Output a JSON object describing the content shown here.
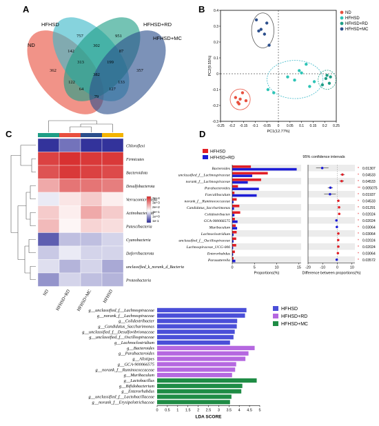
{
  "panels": {
    "A": {
      "letter": "A",
      "venn": {
        "set_labels": [
          "ND",
          "HFHSD",
          "HFHSD+RD",
          "HFHSD+MC"
        ],
        "colors": [
          "#e8503f",
          "#3cb8c8",
          "#1f9e86",
          "#2c4f8c"
        ],
        "region_counts": [
          "757",
          "951",
          "142",
          "302",
          "87",
          "362",
          "313",
          "199",
          "357",
          "122",
          "382",
          "133",
          "64",
          "127",
          "79"
        ]
      }
    },
    "B": {
      "letter": "B",
      "chart_data": {
        "type": "scatter",
        "xlabel": "PC1(12.77%)",
        "ylabel": "PC2(9.55%)",
        "xlim": [
          -0.25,
          0.25
        ],
        "ylim": [
          -0.3,
          0.4
        ],
        "xticks": [
          "-0.25",
          "-0.2",
          "-0.15",
          "-0.1",
          "-0.05",
          "0",
          "0.05",
          "0.1",
          "0.15",
          "0.2",
          "0.25"
        ],
        "yticks": [
          "-0.3",
          "-0.2",
          "-0.1",
          "0",
          "0.1",
          "0.2",
          "0.3",
          "0.4"
        ],
        "legend_position": "top-right",
        "series": [
          {
            "name": "ND",
            "color": "#e8503f",
            "x": [
              -0.185,
              -0.175,
              -0.165,
              -0.17,
              -0.155,
              -0.14
            ],
            "y": [
              -0.15,
              -0.18,
              -0.16,
              -0.19,
              -0.12,
              -0.17
            ]
          },
          {
            "name": "HFHSD",
            "color": "#2ec4b6",
            "x": [
              -0.045,
              -0.02,
              0.04,
              0.07,
              0.09,
              0.12,
              0.135,
              0.155,
              0.1
            ],
            "y": [
              -0.1,
              -0.12,
              -0.02,
              -0.04,
              0.02,
              0.06,
              -0.08,
              -0.05,
              0.005
            ]
          },
          {
            "name": "HFHSD+RD",
            "color": "#1f9e86",
            "x": [
              0.19,
              0.205,
              0.21,
              0.22,
              0.225
            ],
            "y": [
              -0.07,
              -0.03,
              -0.01,
              -0.06,
              -0.02
            ]
          },
          {
            "name": "HFHSD+MC",
            "color": "#2c4f8c",
            "x": [
              -0.095,
              -0.085,
              -0.075,
              -0.06,
              -0.05,
              -0.04
            ],
            "y": [
              0.34,
              0.27,
              0.28,
              0.25,
              0.32,
              0.18
            ]
          }
        ]
      }
    },
    "C": {
      "letter": "C",
      "chart_data": {
        "type": "heatmap",
        "columns": [
          "ND",
          "HFHSD+RD",
          "HFHSD+MC",
          "HFHSD"
        ],
        "column_colors": [
          "#1f9e86",
          "#e8503f",
          "#2c4f8c",
          "#f4b400"
        ],
        "rows": [
          "Chloroflexi",
          "Firmicutes",
          "Bacteroidota",
          "Desulfobacterota",
          "Verrucomicrobiota",
          "Actinobacteriota",
          "Patescibacteria",
          "Cyanobacteria",
          "Deferribacterota",
          "unclassified_k_norank_d_Bacteria",
          "Proteobacteria"
        ],
        "values_log10": [
          [
            -0.9,
            -0.3,
            -0.9,
            -0.9
          ],
          [
            3.2,
            3.4,
            3.3,
            3.3
          ],
          [
            3.0,
            3.3,
            3.2,
            3.1
          ],
          [
            2.0,
            2.6,
            2.6,
            2.5
          ],
          [
            0.8,
            1.3,
            1.6,
            1.2
          ],
          [
            1.6,
            1.2,
            2.0,
            1.6
          ],
          [
            1.8,
            1.1,
            1.5,
            1.4
          ],
          [
            -0.5,
            0.4,
            0.4,
            0.6
          ],
          [
            0.5,
            0.8,
            0.6,
            0.6
          ],
          [
            0.7,
            0.3,
            0.6,
            0.2
          ],
          [
            0.0,
            0.6,
            0.4,
            0.3
          ]
        ],
        "legend_labels": [
          "3e+4",
          "3e+3",
          "2e+2",
          "3e+1",
          "1e+0",
          "1e-1"
        ]
      }
    },
    "D": {
      "letter": "D",
      "legend": [
        "HFHSD",
        "HFHSD+RD"
      ],
      "colors": [
        "#e21f26",
        "#1c1cd6"
      ],
      "ci_title": "95% confidence intervals",
      "chart_data": {
        "type": "bar",
        "categories": [
          "Bacteroides",
          "unclassified_f__Lachnospiraceae",
          "norank_f__Lachnospiraceae",
          "Parabacteroides",
          "Faecalibaculum",
          "norank_f__Ruminococcaceae",
          "Candidatus_Saccharimonas",
          "Colidextribacter",
          "GCA-900066575",
          "Muribaculum",
          "Lachnoclostridium",
          "unclassified_f__Oscillospiraceae",
          "Lachnospiraceae_UCG-006",
          "Enterorhabdus",
          "Parasutterella"
        ],
        "series": [
          {
            "name": "HFHSD",
            "values": [
              4.2,
              8.0,
              6.5,
              1.3,
              0.5,
              1.0,
              1.6,
              1.8,
              0.6,
              0.8,
              1.0,
              0.9,
              0.9,
              0.6,
              0.3
            ]
          },
          {
            "name": "HFHSD+RD",
            "values": [
              14.5,
              4.5,
              3.5,
              6.0,
              5.5,
              0.3,
              0.4,
              0.5,
              1.2,
              1.1,
              0.3,
              0.3,
              0.2,
              0.2,
              0.7
            ]
          }
        ],
        "xlabel": "Proportions(%)",
        "xticks": [
          "0",
          "5",
          "10",
          "15"
        ],
        "diff": [
          -10.3,
          3.5,
          3.0,
          -4.7,
          -5.0,
          0.7,
          1.2,
          1.3,
          -0.6,
          -0.3,
          0.7,
          0.6,
          0.7,
          0.4,
          -0.4
        ],
        "diff_lo": [
          -14.5,
          2.0,
          1.5,
          -6.5,
          -9.0,
          0.3,
          0.5,
          0.7,
          -1.0,
          -0.6,
          0.4,
          0.3,
          0.4,
          0.2,
          -0.7
        ],
        "diff_hi": [
          -6.0,
          5.0,
          4.5,
          -3.0,
          -1.0,
          1.1,
          1.9,
          1.9,
          -0.2,
          0.0,
          1.0,
          0.9,
          1.0,
          0.6,
          -0.1
        ],
        "diff_xlabel": "Difference between proportions(%)",
        "diff_xticks": [
          "-20",
          "-10",
          "0",
          "10"
        ],
        "pvalues": [
          "0.01307",
          "0.04533",
          "0.04533",
          "0.005075",
          "0.01937",
          "0.04533",
          "0.01291",
          "0.02024",
          "0.02024",
          "0.03064",
          "0.03064",
          "0.02024",
          "0.02024",
          "0.03064",
          "0.03572"
        ],
        "stars": [
          "*",
          "*",
          "*",
          "**",
          "*",
          "*",
          "*",
          "*",
          "*",
          "*",
          "*",
          "*",
          "*",
          "*",
          "*"
        ]
      }
    },
    "E": {
      "letter": "E",
      "legend": [
        "HFHSD",
        "HFHSD+RD",
        "HFHSD+MC"
      ],
      "colors": [
        "#4b4fd8",
        "#b568e0",
        "#1f8c45"
      ],
      "chart_data": {
        "type": "bar",
        "categories": [
          "g__unclassified_f__Lachnospiraceae",
          "g__norank_f__Lachnospiraceae",
          "g__Colidextribacter",
          "g__Candidatus_Saccharimonas",
          "g__unclassified_f__Desulfovibrionaceae",
          "g__unclassified_f__Oscillospiraceae",
          "g__Lachnoclostridium",
          "g__Bacteroides",
          "g__Parabacteroides",
          "g__Alistipes",
          "g__GCA-900066575",
          "g__norank_f__Ruminococcaceae",
          "g__Muribaculum",
          "g__Lactobacillus",
          "g__Bifidobacterium",
          "g__Enterorhabdus",
          "g__unclassified_f__Lactobacillaceae",
          "g__norank_f__Erysipelotrichaceae"
        ],
        "groups": [
          "HFHSD",
          "HFHSD",
          "HFHSD",
          "HFHSD",
          "HFHSD",
          "HFHSD",
          "HFHSD",
          "HFHSD+RD",
          "HFHSD+RD",
          "HFHSD+RD",
          "HFHSD+RD",
          "HFHSD+RD",
          "HFHSD+RD",
          "HFHSD+MC",
          "HFHSD+MC",
          "HFHSD+MC",
          "HFHSD+MC",
          "HFHSD+MC"
        ],
        "values": [
          4.35,
          4.28,
          3.9,
          3.88,
          3.78,
          3.72,
          3.55,
          4.75,
          4.45,
          4.3,
          3.85,
          3.8,
          3.65,
          4.85,
          4.15,
          4.1,
          3.62,
          3.55
        ],
        "xlabel": "LDA SCORE",
        "xticks": [
          "0",
          "0.5",
          "1",
          "1.5",
          "2",
          "2.5",
          "3",
          "3.5",
          "4",
          "4.5",
          "5"
        ],
        "xlim": [
          0,
          5
        ]
      }
    }
  }
}
